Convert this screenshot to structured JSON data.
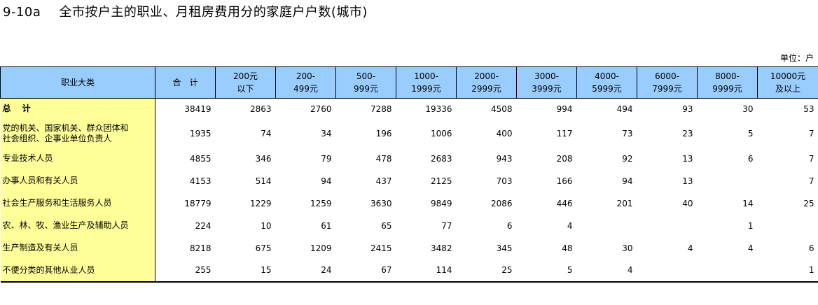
{
  "title": {
    "number": "9-10a",
    "text": "全市按户主的职业、月租房费用分的家庭户户数(城市)"
  },
  "unit": "单位：户",
  "headers": [
    {
      "l1": "职业大类",
      "l2": ""
    },
    {
      "l1": "合　计",
      "l2": ""
    },
    {
      "l1": "200元",
      "l2": "以下"
    },
    {
      "l1": "200-",
      "l2": "499元"
    },
    {
      "l1": "500-",
      "l2": "999元"
    },
    {
      "l1": "1000-",
      "l2": "1999元"
    },
    {
      "l1": "2000-",
      "l2": "2999元"
    },
    {
      "l1": "3000-",
      "l2": "3999元"
    },
    {
      "l1": "4000-",
      "l2": "5999元"
    },
    {
      "l1": "6000-",
      "l2": "7999元"
    },
    {
      "l1": "8000-",
      "l2": "9999元"
    },
    {
      "l1": "10000元",
      "l2": "及以上"
    }
  ],
  "rows": [
    {
      "category": "总 计",
      "values": [
        "38419",
        "2863",
        "2760",
        "7288",
        "19336",
        "4508",
        "994",
        "494",
        "93",
        "30",
        "53"
      ]
    },
    {
      "category": "党的机关、国家机关、群众团体和\n 社会组织、企事业单位负责人",
      "values": [
        "1935",
        "74",
        "34",
        "196",
        "1006",
        "400",
        "117",
        "73",
        "23",
        "5",
        "7"
      ]
    },
    {
      "category": "专业技术人员",
      "values": [
        "4855",
        "346",
        "79",
        "478",
        "2683",
        "943",
        "208",
        "92",
        "13",
        "6",
        "7"
      ]
    },
    {
      "category": "办事人员和有关人员",
      "values": [
        "4153",
        "514",
        "94",
        "437",
        "2125",
        "703",
        "166",
        "94",
        "13",
        "",
        "7"
      ]
    },
    {
      "category": "社会生产服务和生活服务人员",
      "values": [
        "18779",
        "1229",
        "1259",
        "3630",
        "9849",
        "2086",
        "446",
        "201",
        "40",
        "14",
        "25"
      ]
    },
    {
      "category": "农、林、牧、渔业生产及辅助人员",
      "values": [
        "224",
        "10",
        "61",
        "65",
        "77",
        "6",
        "4",
        "",
        "",
        "1",
        ""
      ]
    },
    {
      "category": "生产制造及有关人员",
      "values": [
        "8218",
        "675",
        "1209",
        "2415",
        "3482",
        "345",
        "48",
        "30",
        "4",
        "4",
        "6"
      ]
    },
    {
      "category": "不便分类的其他从业人员",
      "values": [
        "255",
        "15",
        "24",
        "67",
        "114",
        "25",
        "5",
        "4",
        "",
        "",
        "1"
      ]
    }
  ]
}
